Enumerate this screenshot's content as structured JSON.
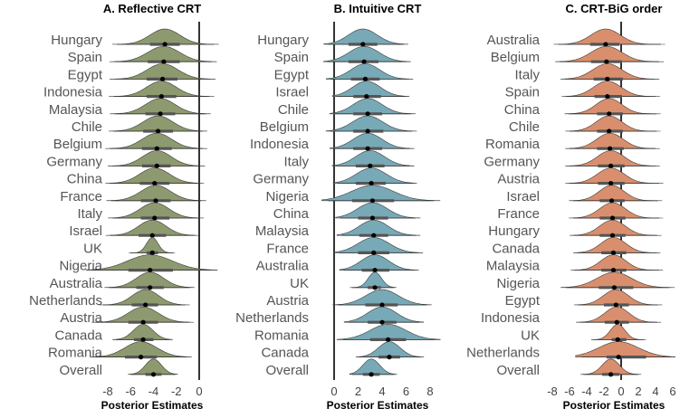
{
  "chart_data": [
    {
      "type": "ridgeline",
      "title": "A. Reflective CRT",
      "xlabel": "Posterior Estimates",
      "xlim": [
        -10,
        1
      ],
      "xticks": [
        -8,
        -6,
        -4,
        -2,
        0
      ],
      "color": "#8d9a6f",
      "reference_line": 0,
      "rows": [
        {
          "label": "Hungary",
          "median": -3.0,
          "inner": [
            -4.3,
            -1.7
          ],
          "outer": [
            -7.2,
            1.3
          ]
        },
        {
          "label": "Spain",
          "median": -3.1,
          "inner": [
            -4.5,
            -1.7
          ],
          "outer": [
            -7.4,
            1.1
          ]
        },
        {
          "label": "Egypt",
          "median": -3.2,
          "inner": [
            -4.6,
            -1.9
          ],
          "outer": [
            -7.4,
            1.0
          ]
        },
        {
          "label": "Indonesia",
          "median": -3.3,
          "inner": [
            -4.6,
            -2.0
          ],
          "outer": [
            -7.5,
            0.9
          ]
        },
        {
          "label": "Malaysia",
          "median": -3.4,
          "inner": [
            -4.7,
            -2.1
          ],
          "outer": [
            -7.4,
            0.6
          ]
        },
        {
          "label": "Chile",
          "median": -3.6,
          "inner": [
            -4.9,
            -2.3
          ],
          "outer": [
            -7.5,
            0.3
          ]
        },
        {
          "label": "Belgium",
          "median": -3.7,
          "inner": [
            -5.0,
            -2.4
          ],
          "outer": [
            -7.8,
            0.3
          ]
        },
        {
          "label": "Germany",
          "median": -3.7,
          "inner": [
            -5.0,
            -2.5
          ],
          "outer": [
            -7.6,
            0.1
          ]
        },
        {
          "label": "China",
          "median": -3.9,
          "inner": [
            -5.2,
            -2.6
          ],
          "outer": [
            -7.8,
            0.0
          ]
        },
        {
          "label": "France",
          "median": -3.8,
          "inner": [
            -5.1,
            -2.5
          ],
          "outer": [
            -7.7,
            0.2
          ]
        },
        {
          "label": "Italy",
          "median": -3.9,
          "inner": [
            -5.1,
            -2.6
          ],
          "outer": [
            -7.6,
            0.0
          ]
        },
        {
          "label": "Israel",
          "median": -4.1,
          "inner": [
            -5.3,
            -2.9
          ],
          "outer": [
            -7.8,
            -0.4
          ]
        },
        {
          "label": "UK",
          "median": -4.1,
          "inner": [
            -4.6,
            -3.6
          ],
          "outer": [
            -6.0,
            -2.3
          ]
        },
        {
          "label": "Nigeria",
          "median": -4.3,
          "inner": [
            -6.2,
            -2.3
          ],
          "outer": [
            -9.3,
            1.0
          ]
        },
        {
          "label": "Australia",
          "median": -4.3,
          "inner": [
            -5.5,
            -3.1
          ],
          "outer": [
            -7.9,
            -0.8
          ]
        },
        {
          "label": "Netherlands",
          "median": -4.7,
          "inner": [
            -5.9,
            -3.6
          ],
          "outer": [
            -8.4,
            -1.2
          ]
        },
        {
          "label": "Austria",
          "median": -4.9,
          "inner": [
            -6.2,
            -3.6
          ],
          "outer": [
            -9.0,
            -0.9
          ]
        },
        {
          "label": "Canada",
          "median": -4.9,
          "inner": [
            -5.7,
            -4.0
          ],
          "outer": [
            -7.3,
            -2.6
          ]
        },
        {
          "label": "Romania",
          "median": -5.1,
          "inner": [
            -6.5,
            -3.7
          ],
          "outer": [
            -9.1,
            -1.1
          ]
        },
        {
          "label": "Overall",
          "median": -4.0,
          "inner": [
            -4.7,
            -3.3
          ],
          "outer": [
            -6.0,
            -2.1
          ]
        }
      ]
    },
    {
      "type": "ridgeline",
      "title": "B. Intuitive CRT",
      "xlabel": "Posterior Estimates",
      "xlim": [
        -0.5,
        9
      ],
      "xticks": [
        0,
        2,
        4,
        6,
        8
      ],
      "color": "#78a9b6",
      "reference_line": 0,
      "rows": [
        {
          "label": "Hungary",
          "median": 2.4,
          "inner": [
            1.2,
            3.6
          ],
          "outer": [
            -0.5,
            5.8
          ]
        },
        {
          "label": "Spain",
          "median": 2.5,
          "inner": [
            1.2,
            3.7
          ],
          "outer": [
            -0.5,
            6.0
          ]
        },
        {
          "label": "Egypt",
          "median": 2.6,
          "inner": [
            1.4,
            3.8
          ],
          "outer": [
            -0.3,
            6.2
          ]
        },
        {
          "label": "Israel",
          "median": 2.7,
          "inner": [
            1.6,
            3.9
          ],
          "outer": [
            0.2,
            5.9
          ]
        },
        {
          "label": "Chile",
          "median": 2.8,
          "inner": [
            1.6,
            4.0
          ],
          "outer": [
            0.0,
            6.4
          ]
        },
        {
          "label": "Belgium",
          "median": 2.8,
          "inner": [
            1.6,
            4.1
          ],
          "outer": [
            -0.3,
            6.5
          ]
        },
        {
          "label": "Indonesia",
          "median": 2.8,
          "inner": [
            1.6,
            4.0
          ],
          "outer": [
            0.0,
            6.3
          ]
        },
        {
          "label": "Italy",
          "median": 3.0,
          "inner": [
            1.8,
            4.2
          ],
          "outer": [
            0.2,
            6.3
          ]
        },
        {
          "label": "Germany",
          "median": 3.1,
          "inner": [
            1.8,
            4.3
          ],
          "outer": [
            0.3,
            6.5
          ]
        },
        {
          "label": "Nigeria",
          "median": 3.2,
          "inner": [
            1.5,
            5.0
          ],
          "outer": [
            -0.5,
            8.3
          ]
        },
        {
          "label": "China",
          "median": 3.2,
          "inner": [
            2.0,
            4.5
          ],
          "outer": [
            0.5,
            6.8
          ]
        },
        {
          "label": "Malaysia",
          "median": 3.3,
          "inner": [
            2.1,
            4.5
          ],
          "outer": [
            0.6,
            6.8
          ]
        },
        {
          "label": "France",
          "median": 3.3,
          "inner": [
            2.0,
            4.6
          ],
          "outer": [
            0.4,
            7.0
          ]
        },
        {
          "label": "Australia",
          "median": 3.4,
          "inner": [
            2.3,
            4.6
          ],
          "outer": [
            0.8,
            6.7
          ]
        },
        {
          "label": "UK",
          "median": 3.4,
          "inner": [
            2.8,
            3.9
          ],
          "outer": [
            1.5,
            5.0
          ]
        },
        {
          "label": "Austria",
          "median": 4.0,
          "inner": [
            2.6,
            5.3
          ],
          "outer": [
            0.3,
            7.7
          ]
        },
        {
          "label": "Netherlands",
          "median": 4.0,
          "inner": [
            2.8,
            5.2
          ],
          "outer": [
            1.2,
            7.1
          ]
        },
        {
          "label": "Romania",
          "median": 4.5,
          "inner": [
            3.0,
            6.0
          ],
          "outer": [
            0.7,
            8.4
          ]
        },
        {
          "label": "Canada",
          "median": 4.6,
          "inner": [
            3.7,
            5.5
          ],
          "outer": [
            2.1,
            7.2
          ]
        },
        {
          "label": "Overall",
          "median": 3.1,
          "inner": [
            2.4,
            3.8
          ],
          "outer": [
            1.5,
            5.0
          ]
        }
      ]
    },
    {
      "type": "ridgeline",
      "title": "C. CRT-BiG order",
      "xlabel": "Posterior Estimates",
      "xlim": [
        -8.2,
        6.5
      ],
      "xticks": [
        -8,
        -6,
        -4,
        -2,
        0,
        2,
        4,
        6
      ],
      "color": "#d98f6d",
      "reference_line": 0,
      "rows": [
        {
          "label": "Australia",
          "median": -1.8,
          "inner": [
            -3.6,
            -0.2
          ],
          "outer": [
            -7.3,
            4.6
          ]
        },
        {
          "label": "Belgium",
          "median": -1.7,
          "inner": [
            -3.5,
            0.1
          ],
          "outer": [
            -7.1,
            4.4
          ]
        },
        {
          "label": "Italy",
          "median": -1.6,
          "inner": [
            -3.2,
            0.2
          ],
          "outer": [
            -6.5,
            3.9
          ]
        },
        {
          "label": "Spain",
          "median": -1.6,
          "inner": [
            -3.1,
            0.1
          ],
          "outer": [
            -6.4,
            4.0
          ]
        },
        {
          "label": "China",
          "median": -1.4,
          "inner": [
            -2.8,
            0.2
          ],
          "outer": [
            -6.1,
            4.1
          ]
        },
        {
          "label": "Chile",
          "median": -1.4,
          "inner": [
            -2.8,
            0.2
          ],
          "outer": [
            -6.0,
            4.1
          ]
        },
        {
          "label": "Romania",
          "median": -1.3,
          "inner": [
            -2.8,
            0.3
          ],
          "outer": [
            -6.0,
            4.0
          ]
        },
        {
          "label": "Germany",
          "median": -1.2,
          "inner": [
            -2.7,
            0.4
          ],
          "outer": [
            -6.0,
            4.0
          ]
        },
        {
          "label": "Austria",
          "median": -1.2,
          "inner": [
            -2.7,
            0.4
          ],
          "outer": [
            -6.0,
            4.4
          ]
        },
        {
          "label": "Israel",
          "median": -1.1,
          "inner": [
            -2.5,
            0.4
          ],
          "outer": [
            -5.6,
            4.3
          ]
        },
        {
          "label": "France",
          "median": -1.0,
          "inner": [
            -2.5,
            0.5
          ],
          "outer": [
            -5.6,
            4.4
          ]
        },
        {
          "label": "Hungary",
          "median": -1.0,
          "inner": [
            -2.5,
            0.5
          ],
          "outer": [
            -5.5,
            4.2
          ]
        },
        {
          "label": "Canada",
          "median": -0.9,
          "inner": [
            -2.3,
            0.6
          ],
          "outer": [
            -5.1,
            4.1
          ]
        },
        {
          "label": "Malaysia",
          "median": -0.9,
          "inner": [
            -2.3,
            0.6
          ],
          "outer": [
            -5.4,
            4.4
          ]
        },
        {
          "label": "Nigeria",
          "median": -0.8,
          "inner": [
            -2.6,
            1.4
          ],
          "outer": [
            -6.4,
            5.6
          ]
        },
        {
          "label": "Egypt",
          "median": -0.6,
          "inner": [
            -2.0,
            0.9
          ],
          "outer": [
            -5.0,
            4.3
          ]
        },
        {
          "label": "Indonesia",
          "median": -0.5,
          "inner": [
            -1.9,
            0.9
          ],
          "outer": [
            -4.8,
            4.2
          ]
        },
        {
          "label": "UK",
          "median": -0.4,
          "inner": [
            -1.1,
            0.6
          ],
          "outer": [
            -3.2,
            2.6
          ]
        },
        {
          "label": "Netherlands",
          "median": -0.3,
          "inner": [
            -1.7,
            2.9
          ],
          "outer": [
            -4.6,
            5.6
          ]
        },
        {
          "label": "Overall",
          "median": -1.2,
          "inner": [
            -2.2,
            -0.2
          ],
          "outer": [
            -4.4,
            2.0
          ]
        }
      ]
    }
  ]
}
